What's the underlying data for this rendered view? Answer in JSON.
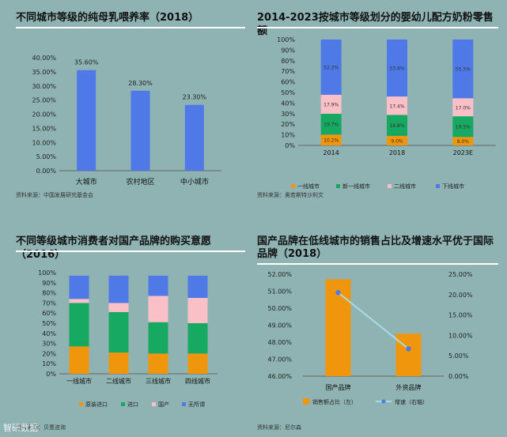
{
  "charts": [
    {
      "title": "不同城市等级的纯母乳喂养率（2018）",
      "source": "资料来源：中国发展研究基金会",
      "chart_data": {
        "type": "bar",
        "categories": [
          "大城市",
          "农村地区",
          "中小城市"
        ],
        "values": [
          35.6,
          28.3,
          23.3
        ],
        "value_labels": [
          "35.60%",
          "28.30%",
          "23.30%"
        ],
        "ylim": [
          0,
          40
        ],
        "yticks": [
          "0.00%",
          "5.00%",
          "10.00%",
          "15.00%",
          "20.00%",
          "25.00%",
          "30.00%",
          "35.00%",
          "40.00%"
        ],
        "color": "#4f79e6"
      }
    },
    {
      "title": "2014-2023按城市等级划分的婴幼儿配方奶粉零售额",
      "source": "资料来源：奥若斯特沙利文",
      "chart_data": {
        "type": "bar",
        "stacked": true,
        "categories": [
          "2014",
          "2018",
          "2023E"
        ],
        "series": [
          {
            "name": "一线城市",
            "values": [
              10.2,
              9.0,
              8.0
            ],
            "labels": [
              "10.2%",
              "9.0%",
              "8.0%"
            ],
            "color": "#f0960c"
          },
          {
            "name": "新一线城市",
            "values": [
              19.7,
              19.8,
              19.5
            ],
            "labels": [
              "19.7%",
              "19.8%",
              "19.5%"
            ],
            "color": "#17a862"
          },
          {
            "name": "二线城市",
            "values": [
              17.9,
              17.4,
              17.0
            ],
            "labels": [
              "17.9%",
              "17.4%",
              "17.0%"
            ],
            "color": "#f9c0c8"
          },
          {
            "name": "下线城市",
            "values": [
              52.2,
              53.8,
              55.5
            ],
            "labels": [
              "52.2%",
              "53.8%",
              "55.5%"
            ],
            "color": "#4f79e6"
          }
        ],
        "ylim": [
          0,
          100
        ],
        "yticks": [
          "0%",
          "10%",
          "20%",
          "30%",
          "40%",
          "50%",
          "60%",
          "70%",
          "80%",
          "90%",
          "100%"
        ]
      }
    },
    {
      "title": "不同等级城市消费者对国产品牌的购买意愿（2016）",
      "source": "资料来源：贝恩咨询",
      "chart_data": {
        "type": "bar",
        "stacked": true,
        "categories": [
          "一线城市",
          "二线城市",
          "三线城市",
          "四线城市"
        ],
        "series": [
          {
            "name": "原装进口",
            "values": [
              27,
              21,
              20,
              20
            ],
            "color": "#f0960c"
          },
          {
            "name": "进口",
            "values": [
              43,
              40,
              31,
              30
            ],
            "color": "#17a862"
          },
          {
            "name": "国产",
            "values": [
              4,
              9,
              26,
              25
            ],
            "color": "#f9c0c8"
          },
          {
            "name": "无所谓",
            "values": [
              23,
              27,
              20,
              22
            ],
            "color": "#4f79e6"
          }
        ],
        "ylim": [
          0,
          100
        ],
        "yticks": [
          "0%",
          "10%",
          "20%",
          "30%",
          "40%",
          "50%",
          "60%",
          "70%",
          "80%",
          "90%",
          "100%"
        ]
      }
    },
    {
      "title_lines": [
        "国产品牌在低线城市的销售占比及增速水平优于国际",
        "品牌（2018）"
      ],
      "source": "资料来源：尼尔森",
      "chart_data": {
        "type": "bar",
        "categories": [
          "国产品牌",
          "外资品牌"
        ],
        "series": [
          {
            "name": "销售额占比（左）",
            "type": "bar",
            "axis": "left",
            "values": [
              51.7,
              48.5
            ],
            "color": "#f0960c"
          },
          {
            "name": "增速（右轴）",
            "type": "line",
            "axis": "right",
            "values": [
              20.5,
              6.7
            ],
            "color": "#a7dbe8",
            "marker_color": "#4f79e6"
          }
        ],
        "ylim_left": [
          46,
          52
        ],
        "ylim_right": [
          0,
          25
        ],
        "yticks_left": [
          "46.00%",
          "47.00%",
          "48.00%",
          "49.00%",
          "50.00%",
          "51.00%",
          "52.00%"
        ],
        "yticks_right": [
          "0.00%",
          "5.00%",
          "10.00%",
          "15.00%",
          "20.00%",
          "25.00%"
        ]
      }
    }
  ],
  "watermark": "智研数据"
}
